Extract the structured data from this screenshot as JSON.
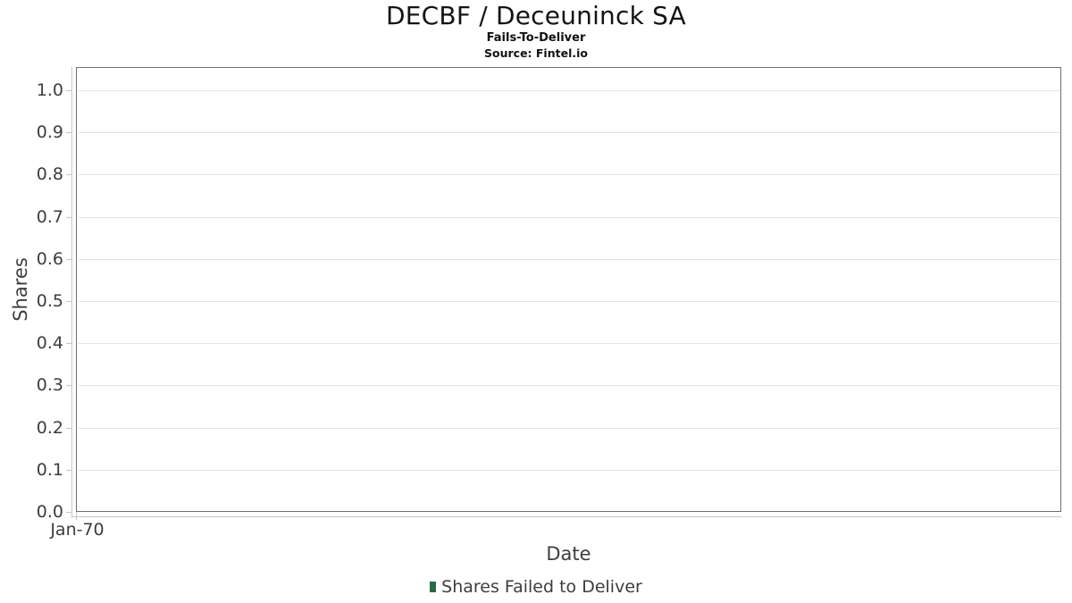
{
  "header": {
    "title": "DECBF / Deceuninck SA",
    "subtitle": "Fails-To-Deliver",
    "source": "Source: Fintel.io"
  },
  "axes": {
    "x_title": "Date",
    "y_title": "Shares",
    "x_tick_labels": [
      "Jan-70"
    ],
    "y_tick_labels": [
      "0.0",
      "0.1",
      "0.2",
      "0.3",
      "0.4",
      "0.5",
      "0.6",
      "0.7",
      "0.8",
      "0.9",
      "1.0"
    ]
  },
  "legend": {
    "label": "Shares Failed to Deliver",
    "marker_color": "#2b6a47"
  },
  "colors": {
    "background": "#ffffff",
    "plot_border": "#6f6f6f",
    "grid": "#e3e3e3",
    "axis_line": "#c6c6c6",
    "tick_text": "#3d3d3d",
    "title_text": "#141414"
  },
  "chart_data": {
    "type": "bar",
    "title": "DECBF / Deceuninck SA",
    "subtitle": "Fails-To-Deliver",
    "source": "Source: Fintel.io",
    "xlabel": "Date",
    "ylabel": "Shares",
    "categories": [
      "Jan-70"
    ],
    "series": [
      {
        "name": "Shares Failed to Deliver",
        "color": "#2b6a47",
        "values": []
      }
    ],
    "ylim": [
      0,
      1.055
    ],
    "yticks": [
      0,
      0.1,
      0.2,
      0.3,
      0.4,
      0.5,
      0.6,
      0.7,
      0.8,
      0.9,
      1.0
    ],
    "grid": true,
    "legend_position": "bottom"
  }
}
